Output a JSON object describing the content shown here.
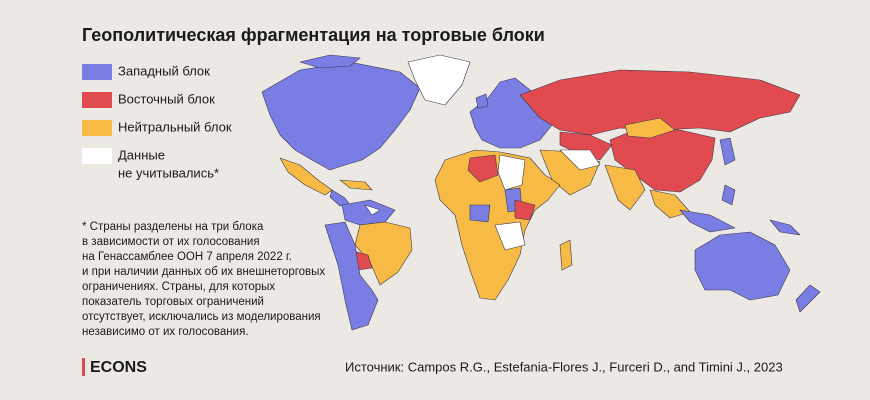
{
  "title": "Геополитическая фрагментация на торговые блоки",
  "legend": [
    {
      "lines": [
        "Западный блок"
      ],
      "color": "#7a7de3"
    },
    {
      "lines": [
        "Восточный блок"
      ],
      "color": "#e14b50"
    },
    {
      "lines": [
        "Нейтральный блок"
      ],
      "color": "#f7bb45"
    },
    {
      "lines": [
        "Данные",
        "не учитывались*"
      ],
      "color": "#ffffff"
    }
  ],
  "footnote": [
    "* Страны разделены на три блока",
    "в зависимости от их голосования",
    "на Генассамблее ООН 7 апреля 2022 г.",
    "и при наличии данных об их внешнеторговых",
    "ограничениях. Страны, для которых",
    "показатель торговых ограничений",
    "отсутствует, исключались из моделирования",
    "независимо от их голосования."
  ],
  "brand": "ECONS",
  "source": "Источник: Campos R.G., Estefania-Flores J., Furceri D., and Timini J., 2023"
}
